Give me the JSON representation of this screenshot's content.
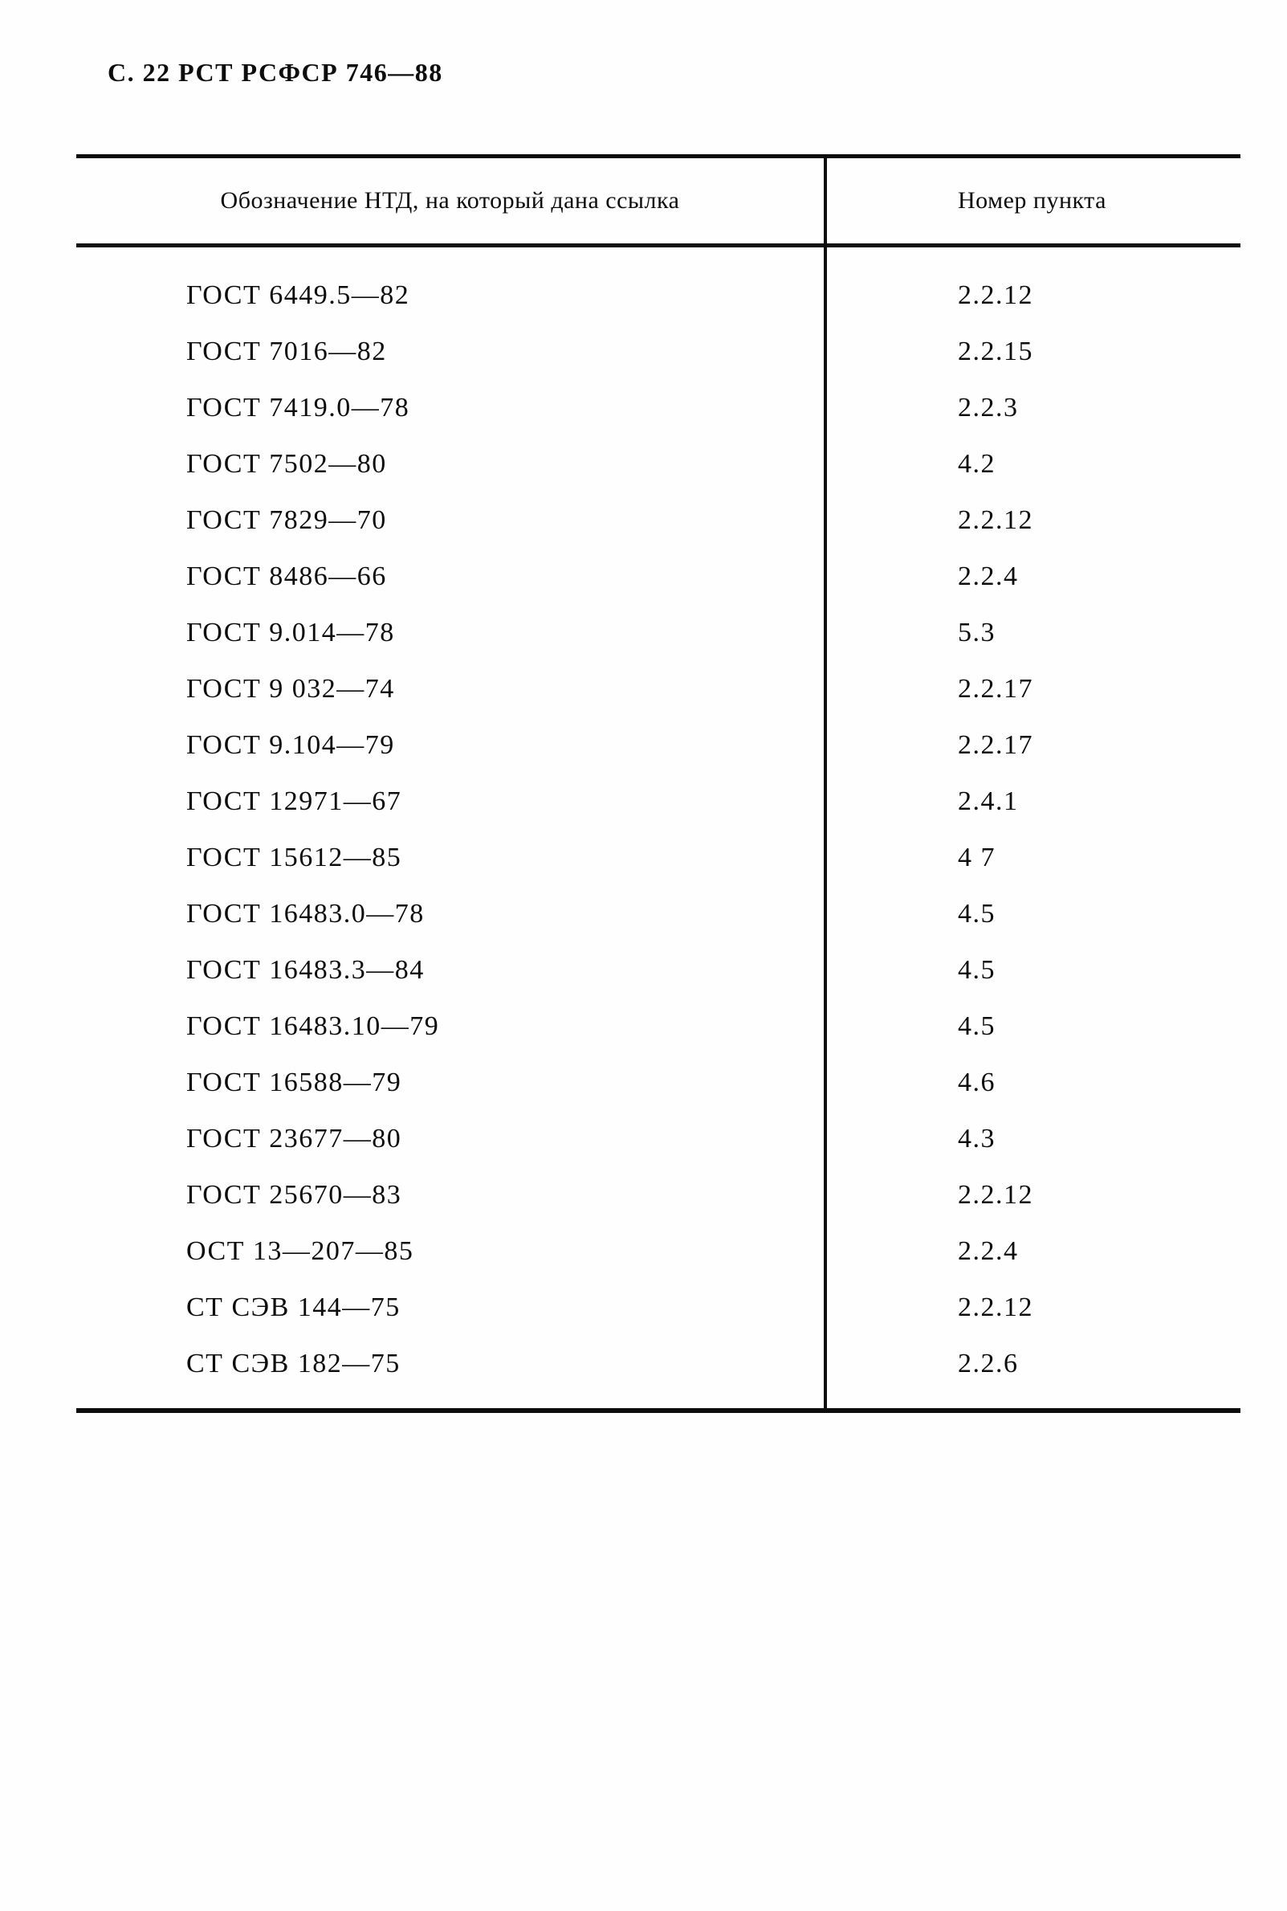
{
  "page": {
    "header": "С. 22 РСТ РСФСР 746—88"
  },
  "table": {
    "columns": {
      "ntd": "Обозначение НТД, на который дана ссылка",
      "punkt": "Номер пункта"
    },
    "rows": [
      {
        "ntd": "ГОСТ 6449.5—82",
        "punkt": "2.2.12"
      },
      {
        "ntd": "ГОСТ 7016—82",
        "punkt": "2.2.15"
      },
      {
        "ntd": "ГОСТ 7419.0—78",
        "punkt": "2.2.3"
      },
      {
        "ntd": "ГОСТ 7502—80",
        "punkt": "4.2"
      },
      {
        "ntd": "ГОСТ 7829—70",
        "punkt": "2.2.12"
      },
      {
        "ntd": "ГОСТ 8486—66",
        "punkt": "2.2.4"
      },
      {
        "ntd": "ГОСТ 9.014—78",
        "punkt": "5.3"
      },
      {
        "ntd": "ГОСТ 9 032—74",
        "punkt": "2.2.17"
      },
      {
        "ntd": "ГОСТ 9.104—79",
        "punkt": "2.2.17"
      },
      {
        "ntd": "ГОСТ 12971—67",
        "punkt": "2.4.1"
      },
      {
        "ntd": "ГОСТ 15612—85",
        "punkt": "4 7"
      },
      {
        "ntd": "ГОСТ 16483.0—78",
        "punkt": "4.5"
      },
      {
        "ntd": "ГОСТ 16483.3—84",
        "punkt": "4.5"
      },
      {
        "ntd": "ГОСТ 16483.10—79",
        "punkt": "4.5"
      },
      {
        "ntd": "ГОСТ 16588—79",
        "punkt": "4.6"
      },
      {
        "ntd": "ГОСТ 23677—80",
        "punkt": "4.3"
      },
      {
        "ntd": "ГОСТ 25670—83",
        "punkt": "2.2.12"
      },
      {
        "ntd": "ОСТ 13—207—85",
        "punkt": "2.2.4"
      },
      {
        "ntd": "СТ СЭВ 144—75",
        "punkt": "2.2.12"
      },
      {
        "ntd": "СТ СЭВ 182—75",
        "punkt": "2.2.6"
      }
    ]
  }
}
